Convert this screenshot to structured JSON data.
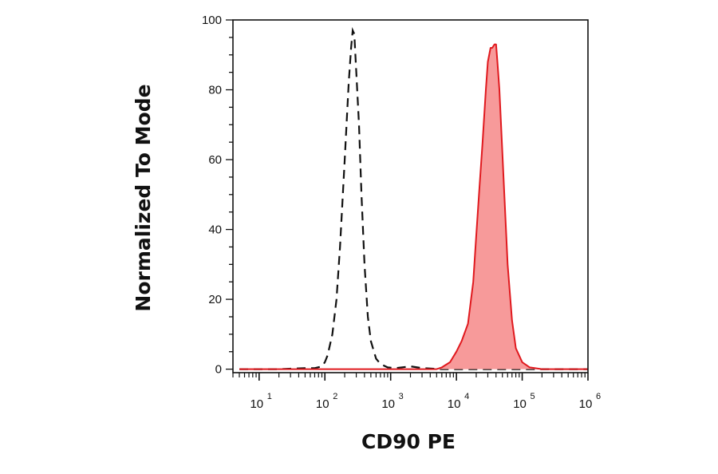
{
  "chart_data": {
    "type": "area",
    "xlabel": "CD90 PE",
    "ylabel": "Normalized To Mode",
    "x_scale": "log",
    "xlim": [
      4,
      1000000
    ],
    "ylim": [
      -1,
      100
    ],
    "x_ticks": [
      {
        "base": "10",
        "exp": "1",
        "value": 10
      },
      {
        "base": "10",
        "exp": "2",
        "value": 100
      },
      {
        "base": "10",
        "exp": "3",
        "value": 1000
      },
      {
        "base": "10",
        "exp": "4",
        "value": 10000
      },
      {
        "base": "10",
        "exp": "5",
        "value": 100000
      },
      {
        "base": "10",
        "exp": "6",
        "value": 1000000
      }
    ],
    "y_ticks": [
      "0",
      "20",
      "40",
      "60",
      "80",
      "100"
    ],
    "grid": false,
    "legend": "none",
    "series": [
      {
        "style": "dashed-outline",
        "color": "#111111",
        "x": [
          5,
          20,
          50,
          70,
          90,
          100,
          110,
          130,
          150,
          170,
          200,
          230,
          250,
          265,
          280,
          300,
          330,
          360,
          400,
          450,
          500,
          600,
          700,
          900,
          1200,
          2000,
          3000,
          6000,
          20000,
          1000000
        ],
        "y": [
          0,
          0,
          0.3,
          0.3,
          0.8,
          2,
          4,
          10,
          20,
          35,
          60,
          82,
          92,
          97,
          96,
          85,
          70,
          50,
          30,
          15,
          8,
          3,
          1.5,
          0.5,
          0.3,
          0.8,
          0.3,
          0,
          0,
          0
        ]
      },
      {
        "style": "filled",
        "color": "#e0191e",
        "fill": "#f79a9a",
        "x": [
          5,
          2000,
          5000,
          6000,
          8000,
          10000,
          12000,
          15000,
          18000,
          20000,
          22000,
          25000,
          28000,
          30000,
          33000,
          35000,
          38000,
          40000,
          42000,
          45000,
          50000,
          55000,
          60000,
          70000,
          80000,
          100000,
          130000,
          200000,
          1000000
        ],
        "y": [
          0,
          0,
          0,
          0.5,
          2,
          5,
          8,
          13,
          25,
          38,
          50,
          65,
          80,
          88,
          92,
          92,
          93,
          93,
          88,
          80,
          62,
          45,
          30,
          14,
          6,
          2,
          0.5,
          0,
          0
        ]
      }
    ]
  }
}
